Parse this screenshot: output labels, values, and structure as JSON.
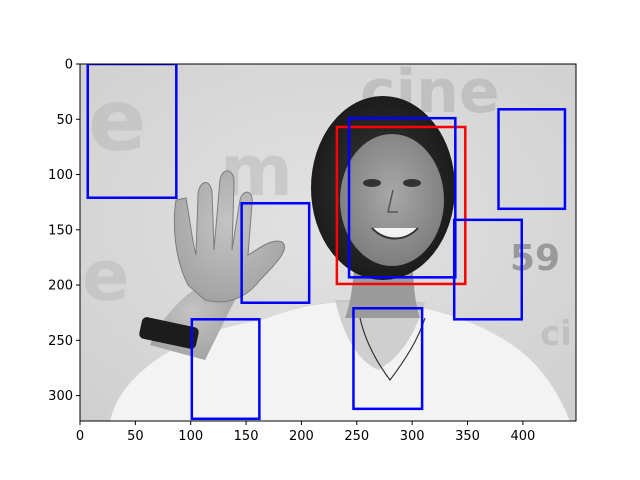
{
  "x_axis": {
    "range": [
      0,
      448
    ],
    "ticks": [
      0,
      50,
      100,
      150,
      200,
      250,
      300,
      350,
      400
    ]
  },
  "y_axis": {
    "range": [
      323,
      0
    ],
    "inverted": true,
    "ticks": [
      0,
      50,
      100,
      150,
      200,
      250,
      300
    ]
  },
  "image": {
    "description_tags": [
      "grayscale-photo",
      "woman-waving",
      "face-detection-sample"
    ],
    "background_text_fragments": [
      "cine",
      "ema",
      "59",
      "ci"
    ]
  },
  "detections": [
    {
      "label": "target",
      "color": "#ff0000",
      "x": 232,
      "y": 57,
      "w": 116,
      "h": 142
    },
    {
      "label": "window",
      "color": "#0000ff",
      "x": 7,
      "y": 0,
      "w": 80,
      "h": 121
    },
    {
      "label": "window",
      "color": "#0000ff",
      "x": 243,
      "y": 49,
      "w": 96,
      "h": 144
    },
    {
      "label": "window",
      "color": "#0000ff",
      "x": 378,
      "y": 41,
      "w": 60,
      "h": 90
    },
    {
      "label": "window",
      "color": "#0000ff",
      "x": 146,
      "y": 126,
      "w": 61,
      "h": 90
    },
    {
      "label": "window",
      "color": "#0000ff",
      "x": 338,
      "y": 141,
      "w": 61,
      "h": 90
    },
    {
      "label": "window",
      "color": "#0000ff",
      "x": 101,
      "y": 231,
      "w": 61,
      "h": 90
    },
    {
      "label": "window",
      "color": "#0000ff",
      "x": 247,
      "y": 221,
      "w": 62,
      "h": 91
    }
  ],
  "colors": {
    "target_box": "#ff0000",
    "window_box": "#0000ff",
    "axes": "#000000"
  }
}
